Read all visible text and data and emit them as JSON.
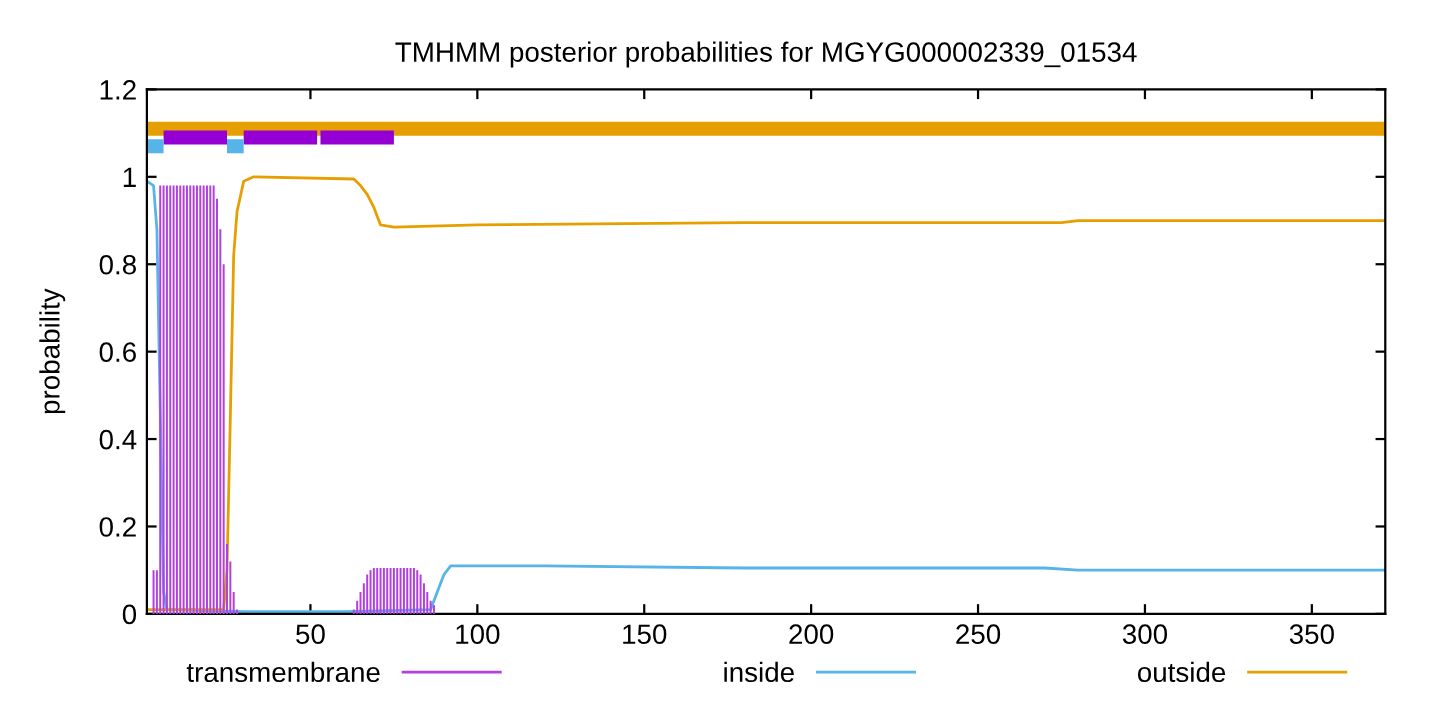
{
  "chart_data": {
    "type": "line",
    "title": "TMHMM posterior probabilities for MGYG000002339_01534",
    "ylabel": "probability",
    "xlim": [
      1,
      372
    ],
    "ylim": [
      0,
      1.2
    ],
    "xticks": [
      50,
      100,
      150,
      200,
      250,
      300,
      350
    ],
    "yticks": [
      0,
      0.2,
      0.4,
      0.6,
      0.8,
      1,
      1.2
    ],
    "grid": false,
    "legend": "bottom",
    "series": [
      {
        "name": "transmembrane",
        "type": "bar",
        "color": "#b040e0",
        "x": [
          3,
          4,
          5,
          6,
          7,
          8,
          9,
          10,
          11,
          12,
          13,
          14,
          15,
          16,
          17,
          18,
          19,
          20,
          21,
          22,
          23,
          24,
          25,
          26,
          27,
          28,
          63,
          64,
          65,
          66,
          67,
          68,
          69,
          70,
          71,
          72,
          73,
          74,
          75,
          76,
          77,
          78,
          79,
          80,
          81,
          82,
          83,
          84,
          85,
          86,
          87
        ],
        "values": [
          0.1,
          0.1,
          0.98,
          0.98,
          0.98,
          0.98,
          0.98,
          0.98,
          0.98,
          0.98,
          0.98,
          0.98,
          0.98,
          0.98,
          0.98,
          0.98,
          0.98,
          0.98,
          0.98,
          0.95,
          0.88,
          0.8,
          0.16,
          0.12,
          0.05,
          0.01,
          0.01,
          0.03,
          0.05,
          0.07,
          0.09,
          0.1,
          0.105,
          0.105,
          0.105,
          0.105,
          0.105,
          0.105,
          0.105,
          0.105,
          0.105,
          0.105,
          0.105,
          0.105,
          0.105,
          0.1,
          0.09,
          0.07,
          0.05,
          0.03,
          0.02
        ]
      },
      {
        "name": "inside",
        "color": "#56b4e9",
        "x": [
          1,
          3,
          4,
          6,
          7,
          30,
          60,
          86,
          88,
          90,
          92,
          120,
          180,
          270,
          280,
          372
        ],
        "values": [
          0.99,
          0.98,
          0.88,
          0.05,
          0.01,
          0.005,
          0.005,
          0.01,
          0.05,
          0.09,
          0.11,
          0.11,
          0.105,
          0.105,
          0.1,
          0.1
        ]
      },
      {
        "name": "outside",
        "color": "#e69f00",
        "x": [
          1,
          24,
          25,
          26,
          27,
          28,
          30,
          33,
          63,
          65,
          67,
          69,
          71,
          75,
          100,
          180,
          275,
          280,
          372
        ],
        "values": [
          0.01,
          0.01,
          0.1,
          0.45,
          0.82,
          0.92,
          0.99,
          1.0,
          0.995,
          0.98,
          0.96,
          0.93,
          0.89,
          0.885,
          0.89,
          0.895,
          0.895,
          0.9,
          0.9
        ]
      },
      {
        "color": "#e69f00",
        "x": [
          1,
          372
        ],
        "values": [
          1.11,
          1.11
        ]
      },
      {
        "color": "#9400d3",
        "x": [
          6,
          25,
          27,
          30,
          52,
          52.5,
          53,
          75
        ],
        "values": [
          1.09,
          1.09,
          null,
          1.09,
          1.09,
          null,
          1.09,
          1.09
        ]
      },
      {
        "color": "#56b4e9",
        "x": [
          1,
          6,
          15,
          25,
          30
        ],
        "values": [
          1.07,
          1.07,
          null,
          1.07,
          1.07
        ]
      }
    ]
  }
}
